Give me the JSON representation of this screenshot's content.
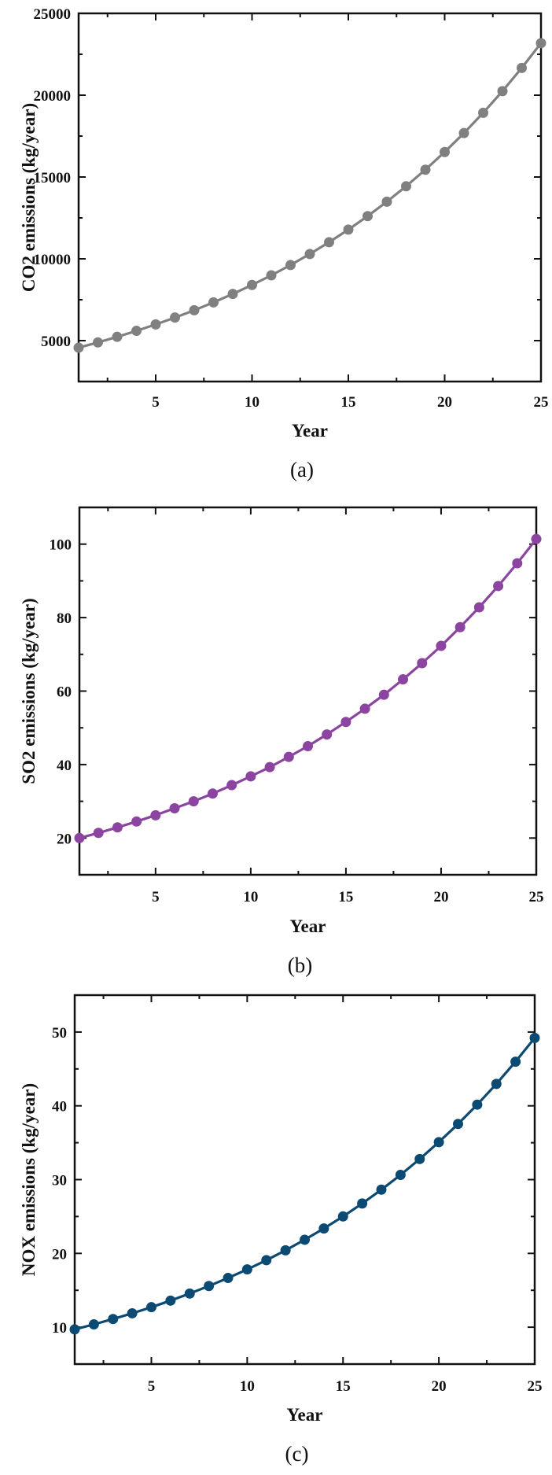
{
  "chart_data": [
    {
      "type": "line",
      "caption": "(a)",
      "xlabel": "Year",
      "ylabel": "CO2 emissions (kg/year)",
      "xlim": [
        1,
        25
      ],
      "ylim": [
        2500,
        25000
      ],
      "xticks": [
        5,
        10,
        15,
        20,
        25
      ],
      "xminor_step": 2.5,
      "yticks": [
        5000,
        10000,
        15000,
        20000,
        25000
      ],
      "yminor_step": 2500,
      "grid": false,
      "color": "#808080",
      "marker": "circle",
      "x": [
        1,
        2,
        3,
        4,
        5,
        6,
        7,
        8,
        9,
        10,
        11,
        12,
        13,
        14,
        15,
        16,
        17,
        18,
        19,
        20,
        21,
        22,
        23,
        24,
        25
      ],
      "values": [
        4570,
        4890,
        5232,
        5598,
        5990,
        6410,
        6858,
        7338,
        7852,
        8402,
        8990,
        9619,
        10292,
        11013,
        11784,
        12609,
        13491,
        14436,
        15446,
        16527,
        17684,
        18922,
        20247,
        21664,
        23181
      ]
    },
    {
      "type": "line",
      "caption": "(b)",
      "xlabel": "Year",
      "ylabel": "SO2 emissions (kg/year)",
      "xlim": [
        1,
        25
      ],
      "ylim": [
        10,
        110
      ],
      "xticks": [
        5,
        10,
        15,
        20,
        25
      ],
      "xminor_step": 2.5,
      "yticks": [
        20,
        40,
        60,
        80,
        100
      ],
      "yminor_step": 10,
      "grid": false,
      "color": "#8b44a0",
      "marker": "circle",
      "x": [
        1,
        2,
        3,
        4,
        5,
        6,
        7,
        8,
        9,
        10,
        11,
        12,
        13,
        14,
        15,
        16,
        17,
        18,
        19,
        20,
        21,
        22,
        23,
        24,
        25
      ],
      "values": [
        20.0,
        21.4,
        22.9,
        24.5,
        26.2,
        28.1,
        30.0,
        32.1,
        34.4,
        36.8,
        39.3,
        42.1,
        45.0,
        48.2,
        51.6,
        55.2,
        59.0,
        63.2,
        67.6,
        72.3,
        77.4,
        82.8,
        88.6,
        94.8,
        101.4
      ]
    },
    {
      "type": "line",
      "caption": "(c)",
      "xlabel": "Year",
      "ylabel": "NOX emissions (kg/year)",
      "xlim": [
        1,
        25
      ],
      "ylim": [
        5,
        55
      ],
      "xticks": [
        5,
        10,
        15,
        20,
        25
      ],
      "xminor_step": 2.5,
      "yticks": [
        10,
        20,
        30,
        40,
        50
      ],
      "yminor_step": 5,
      "grid": false,
      "color": "#0b4a72",
      "marker": "circle",
      "x": [
        1,
        2,
        3,
        4,
        5,
        6,
        7,
        8,
        9,
        10,
        11,
        12,
        13,
        14,
        15,
        16,
        17,
        18,
        19,
        20,
        21,
        22,
        23,
        24,
        25
      ],
      "values": [
        9.7,
        10.38,
        11.11,
        11.88,
        12.71,
        13.6,
        14.56,
        15.58,
        16.67,
        17.83,
        19.08,
        20.42,
        21.85,
        23.38,
        25.01,
        26.76,
        28.64,
        30.64,
        32.79,
        35.08,
        37.54,
        40.16,
        42.97,
        45.98,
        49.2
      ]
    }
  ]
}
